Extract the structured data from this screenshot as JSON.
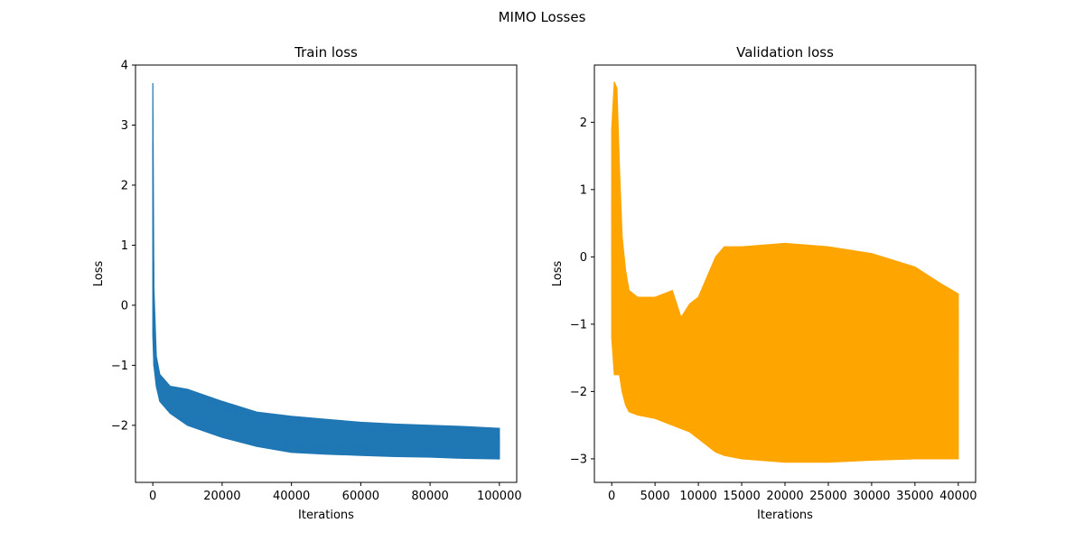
{
  "figure": {
    "suptitle": "MIMO Losses"
  },
  "chart_data": [
    {
      "type": "line",
      "title": "Train loss",
      "xlabel": "Iterations",
      "ylabel": "Loss",
      "xlim": [
        -5000,
        105000
      ],
      "ylim": [
        -2.95,
        4.0
      ],
      "xticks": [
        0,
        20000,
        40000,
        60000,
        80000,
        100000
      ],
      "xtick_labels": [
        "0",
        "20000",
        "40000",
        "60000",
        "80000",
        "100000"
      ],
      "yticks": [
        -2,
        -1,
        0,
        1,
        2,
        3,
        4
      ],
      "ytick_labels": [
        "−2",
        "−1",
        "0",
        "1",
        "2",
        "3",
        "4"
      ],
      "grid": false,
      "series": [
        {
          "color": "#1f77b4",
          "x": [
            0,
            300,
            1000,
            2000,
            5000,
            10000,
            20000,
            30000,
            40000,
            50000,
            60000,
            70000,
            80000,
            90000,
            100000
          ],
          "upper": [
            3.7,
            0.3,
            -0.85,
            -1.15,
            -1.35,
            -1.4,
            -1.6,
            -1.78,
            -1.85,
            -1.9,
            -1.95,
            -1.98,
            -2.0,
            -2.02,
            -2.05
          ],
          "lower": [
            -0.5,
            -1.0,
            -1.35,
            -1.6,
            -1.8,
            -2.0,
            -2.2,
            -2.35,
            -2.45,
            -2.48,
            -2.5,
            -2.52,
            -2.53,
            -2.55,
            -2.56
          ]
        }
      ]
    },
    {
      "type": "line",
      "title": "Validation loss",
      "xlabel": "Iterations",
      "ylabel": "Loss",
      "xlim": [
        -2000,
        42000
      ],
      "ylim": [
        -3.35,
        2.85
      ],
      "xticks": [
        0,
        5000,
        10000,
        15000,
        20000,
        25000,
        30000,
        35000,
        40000
      ],
      "xtick_labels": [
        "0",
        "5000",
        "10000",
        "15000",
        "20000",
        "25000",
        "30000",
        "35000",
        "40000"
      ],
      "yticks": [
        -3,
        -2,
        -1,
        0,
        1,
        2
      ],
      "ytick_labels": [
        "−3",
        "−2",
        "−1",
        "0",
        "1",
        "2"
      ],
      "grid": false,
      "series": [
        {
          "color": "#ffa500",
          "x": [
            0,
            300,
            600,
            900,
            1200,
            1600,
            2000,
            3000,
            5000,
            7000,
            8000,
            9000,
            10000,
            11000,
            12000,
            13000,
            15000,
            20000,
            25000,
            30000,
            35000,
            38000,
            40000
          ],
          "upper": [
            1.9,
            2.6,
            2.5,
            1.3,
            0.3,
            -0.2,
            -0.5,
            -0.6,
            -0.6,
            -0.5,
            -0.9,
            -0.7,
            -0.6,
            -0.3,
            0.0,
            0.15,
            0.15,
            0.2,
            0.15,
            0.05,
            -0.15,
            -0.4,
            -0.55
          ],
          "lower": [
            -1.2,
            -1.75,
            -1.75,
            -1.75,
            -2.0,
            -2.2,
            -2.3,
            -2.35,
            -2.4,
            -2.5,
            -2.55,
            -2.6,
            -2.7,
            -2.8,
            -2.9,
            -2.95,
            -3.0,
            -3.05,
            -3.05,
            -3.02,
            -3.0,
            -3.0,
            -3.0
          ]
        }
      ]
    }
  ]
}
